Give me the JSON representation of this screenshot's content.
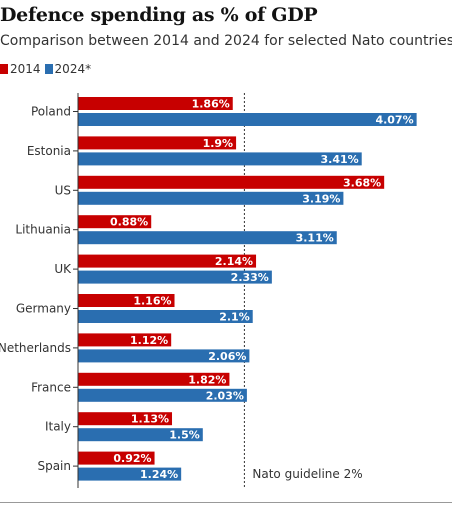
{
  "chart_data": {
    "type": "bar",
    "orientation": "horizontal",
    "title": "Defence spending as % of GDP",
    "subtitle": "Comparison between 2014 and 2024 for selected Nato countries",
    "categories": [
      "Poland",
      "Estonia",
      "US",
      "Lithuania",
      "UK",
      "Germany",
      "Netherlands",
      "France",
      "Italy",
      "Spain"
    ],
    "series": [
      {
        "name": "2014",
        "color": "#c70000",
        "values": [
          1.86,
          1.9,
          3.68,
          0.88,
          2.14,
          1.16,
          1.12,
          1.82,
          1.13,
          0.92
        ],
        "labels": [
          "1.86%",
          "1.9%",
          "3.68%",
          "0.88%",
          "2.14%",
          "1.16%",
          "1.12%",
          "1.82%",
          "1.13%",
          "0.92%"
        ]
      },
      {
        "name": "2024*",
        "color": "#2a6eb0",
        "values": [
          4.07,
          3.41,
          3.19,
          3.11,
          2.33,
          2.1,
          2.06,
          2.03,
          1.5,
          1.24
        ],
        "labels": [
          "4.07%",
          "3.41%",
          "3.19%",
          "3.11%",
          "2.33%",
          "2.1%",
          "2.06%",
          "2.03%",
          "1.5%",
          "1.24%"
        ]
      }
    ],
    "reference_line": {
      "value": 2,
      "label": "Nato guideline 2%"
    },
    "xlim": [
      0,
      4.1
    ],
    "legend_placement": "top-left",
    "grid": false
  }
}
